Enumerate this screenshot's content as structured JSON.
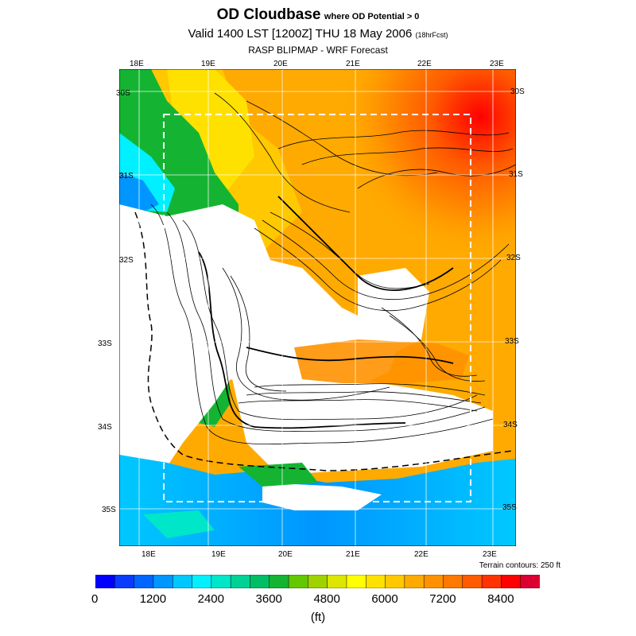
{
  "header": {
    "title": "OD Cloudbase",
    "title_note": "where OD Potential > 0",
    "valid": "Valid 1400 LST [1200Z] THU 18 May 2006",
    "fcst": "(18hrFcst)",
    "model": "RASP BLIPMAP - WRF Forecast"
  },
  "axes": {
    "lon_top": [
      "18E",
      "19E",
      "20E",
      "21E",
      "22E",
      "23E"
    ],
    "lon_bottom": [
      "18E",
      "19E",
      "20E",
      "21E",
      "22E",
      "23E"
    ],
    "lat_left": [
      "30S",
      "31S",
      "32S",
      "33S",
      "34S",
      "35S"
    ],
    "lat_right": [
      "30S",
      "31S",
      "32S",
      "33S",
      "34S",
      "35S"
    ]
  },
  "footer": {
    "terrain_note": "Terrain contours: 250 ft",
    "unit": "(ft)"
  },
  "colorbar": {
    "colors": [
      "#0000ff",
      "#0a3cff",
      "#0066ff",
      "#0096ff",
      "#00c8ff",
      "#00f0ff",
      "#00e6c8",
      "#00d296",
      "#00be64",
      "#14b432",
      "#64c800",
      "#a0d200",
      "#dce600",
      "#ffff00",
      "#ffe100",
      "#ffc800",
      "#ffaa00",
      "#ff9100",
      "#ff7800",
      "#ff5a00",
      "#ff3200",
      "#ff0000",
      "#dc0032"
    ],
    "tick_labels": [
      "0",
      "1200",
      "2400",
      "3600",
      "4800",
      "6000",
      "7200",
      "8400"
    ]
  }
}
